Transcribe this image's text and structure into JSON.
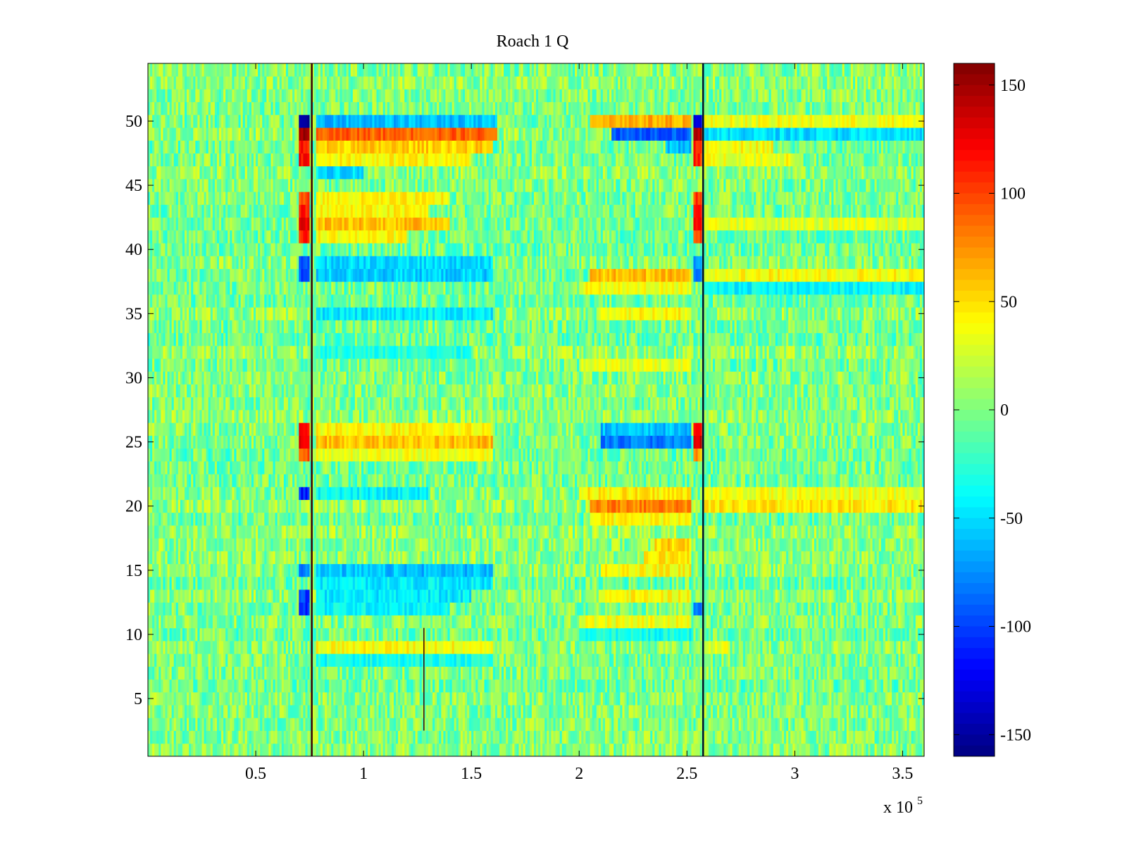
{
  "chart_data": {
    "type": "heatmap",
    "title": "Roach 1 Q",
    "xlabel": "",
    "ylabel": "",
    "x_exponent_label": "x 10",
    "x_exponent_power": "5",
    "xlim": [
      0,
      3.6
    ],
    "ylim": [
      0.5,
      54.5
    ],
    "rows": 54,
    "xticks": [
      {
        "value": 0.5,
        "label": "0.5"
      },
      {
        "value": 1,
        "label": "1"
      },
      {
        "value": 1.5,
        "label": "1.5"
      },
      {
        "value": 2,
        "label": "2"
      },
      {
        "value": 2.5,
        "label": "2.5"
      },
      {
        "value": 3,
        "label": "3"
      },
      {
        "value": 3.5,
        "label": "3.5"
      }
    ],
    "yticks": [
      {
        "value": 5,
        "label": "5"
      },
      {
        "value": 10,
        "label": "10"
      },
      {
        "value": 15,
        "label": "15"
      },
      {
        "value": 20,
        "label": "20"
      },
      {
        "value": 25,
        "label": "25"
      },
      {
        "value": 30,
        "label": "30"
      },
      {
        "value": 35,
        "label": "35"
      },
      {
        "value": 40,
        "label": "40"
      },
      {
        "value": 45,
        "label": "45"
      },
      {
        "value": 50,
        "label": "50"
      }
    ],
    "colorbar": {
      "colormap": "jet",
      "range": [
        -160,
        160
      ],
      "ticks": [
        {
          "value": 150,
          "label": "150"
        },
        {
          "value": 100,
          "label": "100"
        },
        {
          "value": 50,
          "label": "50"
        },
        {
          "value": 0,
          "label": "0"
        },
        {
          "value": -50,
          "label": "-50"
        },
        {
          "value": -100,
          "label": "-100"
        },
        {
          "value": -150,
          "label": "-150"
        }
      ]
    },
    "baseline_value": 0,
    "noise_amplitude": 28,
    "vertical_lines": [
      {
        "x": 0.76,
        "color": "#3a0000"
      },
      {
        "x": 2.575,
        "color": "#00102a"
      }
    ],
    "short_lines": [
      {
        "x": 1.28,
        "row_from": 3,
        "row_to": 10,
        "color": "#3a0000"
      }
    ],
    "bands": [
      {
        "row": 49,
        "from": 0.7,
        "to": 0.745,
        "value": 150
      },
      {
        "row": 49,
        "from": 0.78,
        "to": 1.62,
        "value": 90
      },
      {
        "row": 49,
        "from": 2.15,
        "to": 2.52,
        "value": -90
      },
      {
        "row": 49,
        "from": 2.53,
        "to": 2.565,
        "value": 150
      },
      {
        "row": 49,
        "from": 2.58,
        "to": 3.6,
        "value": -50
      },
      {
        "row": 50,
        "from": 0.7,
        "to": 0.745,
        "value": -150
      },
      {
        "row": 50,
        "from": 0.78,
        "to": 1.62,
        "value": -60
      },
      {
        "row": 50,
        "from": 2.05,
        "to": 2.52,
        "value": 65
      },
      {
        "row": 50,
        "from": 2.53,
        "to": 2.565,
        "value": -140
      },
      {
        "row": 50,
        "from": 2.58,
        "to": 3.6,
        "value": 35
      },
      {
        "row": 48,
        "from": 0.7,
        "to": 0.745,
        "value": 110
      },
      {
        "row": 48,
        "from": 0.78,
        "to": 1.6,
        "value": 55
      },
      {
        "row": 48,
        "from": 2.4,
        "to": 2.52,
        "value": -60
      },
      {
        "row": 48,
        "from": 2.53,
        "to": 2.565,
        "value": 110
      },
      {
        "row": 48,
        "from": 2.58,
        "to": 2.9,
        "value": 40
      },
      {
        "row": 47,
        "from": 0.7,
        "to": 0.745,
        "value": 120
      },
      {
        "row": 47,
        "from": 0.78,
        "to": 1.5,
        "value": 40
      },
      {
        "row": 47,
        "from": 2.53,
        "to": 2.565,
        "value": 110
      },
      {
        "row": 47,
        "from": 2.58,
        "to": 3.0,
        "value": 35
      },
      {
        "row": 46,
        "from": 0.78,
        "to": 1.0,
        "value": -50
      },
      {
        "row": 44,
        "from": 0.7,
        "to": 0.745,
        "value": 100
      },
      {
        "row": 44,
        "from": 0.78,
        "to": 1.4,
        "value": 40
      },
      {
        "row": 44,
        "from": 2.53,
        "to": 2.565,
        "value": 100
      },
      {
        "row": 43,
        "from": 0.7,
        "to": 0.745,
        "value": 110
      },
      {
        "row": 43,
        "from": 0.78,
        "to": 1.3,
        "value": 40
      },
      {
        "row": 43,
        "from": 2.53,
        "to": 2.565,
        "value": 110
      },
      {
        "row": 42,
        "from": 0.7,
        "to": 0.745,
        "value": 130
      },
      {
        "row": 42,
        "from": 0.78,
        "to": 1.4,
        "value": 60
      },
      {
        "row": 42,
        "from": 2.53,
        "to": 2.565,
        "value": 120
      },
      {
        "row": 42,
        "from": 2.58,
        "to": 3.6,
        "value": 30
      },
      {
        "row": 41,
        "from": 0.7,
        "to": 0.745,
        "value": 110
      },
      {
        "row": 41,
        "from": 0.78,
        "to": 1.2,
        "value": 40
      },
      {
        "row": 41,
        "from": 2.53,
        "to": 2.565,
        "value": 100
      },
      {
        "row": 39,
        "from": 0.7,
        "to": 0.745,
        "value": -90
      },
      {
        "row": 39,
        "from": 0.78,
        "to": 1.6,
        "value": -50
      },
      {
        "row": 39,
        "from": 2.53,
        "to": 2.565,
        "value": -70
      },
      {
        "row": 38,
        "from": 0.7,
        "to": 0.745,
        "value": -100
      },
      {
        "row": 38,
        "from": 0.78,
        "to": 1.6,
        "value": -55
      },
      {
        "row": 38,
        "from": 2.05,
        "to": 2.52,
        "value": 60
      },
      {
        "row": 38,
        "from": 2.53,
        "to": 2.565,
        "value": -80
      },
      {
        "row": 38,
        "from": 2.58,
        "to": 3.6,
        "value": 40
      },
      {
        "row": 37,
        "from": 2.0,
        "to": 2.52,
        "value": 35
      },
      {
        "row": 37,
        "from": 2.58,
        "to": 3.6,
        "value": -40
      },
      {
        "row": 35,
        "from": 0.78,
        "to": 1.6,
        "value": -45
      },
      {
        "row": 35,
        "from": 2.1,
        "to": 2.52,
        "value": 40
      },
      {
        "row": 32,
        "from": 0.78,
        "to": 1.5,
        "value": -30
      },
      {
        "row": 31,
        "from": 2.0,
        "to": 2.52,
        "value": 30
      },
      {
        "row": 26,
        "from": 0.7,
        "to": 0.745,
        "value": 120
      },
      {
        "row": 26,
        "from": 0.78,
        "to": 1.6,
        "value": 40
      },
      {
        "row": 26,
        "from": 2.1,
        "to": 2.52,
        "value": -60
      },
      {
        "row": 26,
        "from": 2.53,
        "to": 2.565,
        "value": 110
      },
      {
        "row": 25,
        "from": 0.7,
        "to": 0.745,
        "value": 130
      },
      {
        "row": 25,
        "from": 0.78,
        "to": 1.6,
        "value": 60
      },
      {
        "row": 25,
        "from": 2.1,
        "to": 2.52,
        "value": -80
      },
      {
        "row": 25,
        "from": 2.53,
        "to": 2.565,
        "value": 130
      },
      {
        "row": 24,
        "from": 0.7,
        "to": 0.745,
        "value": 90
      },
      {
        "row": 24,
        "from": 0.78,
        "to": 1.6,
        "value": 35
      },
      {
        "row": 24,
        "from": 2.53,
        "to": 2.565,
        "value": 70
      },
      {
        "row": 21,
        "from": 0.7,
        "to": 0.745,
        "value": -110
      },
      {
        "row": 21,
        "from": 0.78,
        "to": 1.3,
        "value": -40
      },
      {
        "row": 21,
        "from": 2.0,
        "to": 2.52,
        "value": 45
      },
      {
        "row": 21,
        "from": 2.58,
        "to": 3.6,
        "value": 35
      },
      {
        "row": 20,
        "from": 2.05,
        "to": 2.52,
        "value": 80
      },
      {
        "row": 20,
        "from": 2.58,
        "to": 3.6,
        "value": 45
      },
      {
        "row": 19,
        "from": 2.05,
        "to": 2.52,
        "value": 40
      },
      {
        "row": 17,
        "from": 2.35,
        "to": 2.52,
        "value": 55
      },
      {
        "row": 16,
        "from": 2.3,
        "to": 2.52,
        "value": 45
      },
      {
        "row": 15,
        "from": 0.7,
        "to": 0.745,
        "value": -80
      },
      {
        "row": 15,
        "from": 0.78,
        "to": 1.6,
        "value": -60
      },
      {
        "row": 15,
        "from": 2.1,
        "to": 2.52,
        "value": 40
      },
      {
        "row": 14,
        "from": 0.78,
        "to": 1.6,
        "value": -45
      },
      {
        "row": 13,
        "from": 0.7,
        "to": 0.745,
        "value": -100
      },
      {
        "row": 13,
        "from": 0.78,
        "to": 1.5,
        "value": -45
      },
      {
        "row": 13,
        "from": 2.1,
        "to": 2.52,
        "value": 40
      },
      {
        "row": 12,
        "from": 0.7,
        "to": 0.745,
        "value": -110
      },
      {
        "row": 12,
        "from": 0.78,
        "to": 1.4,
        "value": -40
      },
      {
        "row": 12,
        "from": 2.53,
        "to": 2.565,
        "value": -90
      },
      {
        "row": 11,
        "from": 2.0,
        "to": 2.52,
        "value": 35
      },
      {
        "row": 10,
        "from": 2.0,
        "to": 2.52,
        "value": -35
      },
      {
        "row": 9,
        "from": 0.78,
        "to": 1.6,
        "value": 40
      },
      {
        "row": 9,
        "from": 2.58,
        "to": 2.7,
        "value": 30
      },
      {
        "row": 8,
        "from": 0.78,
        "to": 1.6,
        "value": -35
      }
    ]
  }
}
